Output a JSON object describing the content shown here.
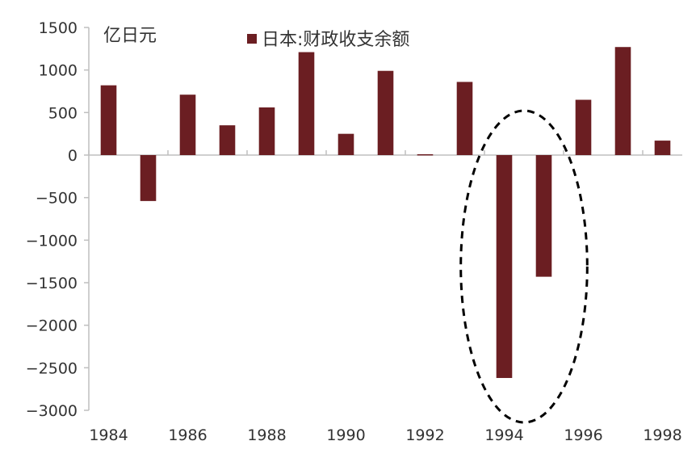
{
  "chart_data": {
    "type": "bar",
    "categories": [
      "1984",
      "1985",
      "1986",
      "1987",
      "1988",
      "1989",
      "1990",
      "1991",
      "1992",
      "1993",
      "1994",
      "1995",
      "1996",
      "1997",
      "1998"
    ],
    "series": [
      {
        "name": "日本:财政收支余额",
        "values": [
          820,
          -540,
          710,
          350,
          560,
          1210,
          250,
          990,
          10,
          860,
          -2620,
          -1430,
          650,
          1270,
          170
        ]
      }
    ],
    "x_tick_labels": [
      "1984",
      "1986",
      "1988",
      "1990",
      "1992",
      "1994",
      "1996",
      "1998"
    ],
    "y_ticks": [
      1500,
      1000,
      500,
      0,
      -500,
      -1000,
      -1500,
      -2000,
      -2500,
      -3000
    ],
    "ylim": [
      -3000,
      1500
    ],
    "ylabel": "亿日元",
    "legend_position": "top",
    "bar_color": "#6b1e22",
    "highlight": {
      "shape": "dashed-ellipse",
      "categories": [
        "1994",
        "1995"
      ]
    },
    "grid": false
  }
}
